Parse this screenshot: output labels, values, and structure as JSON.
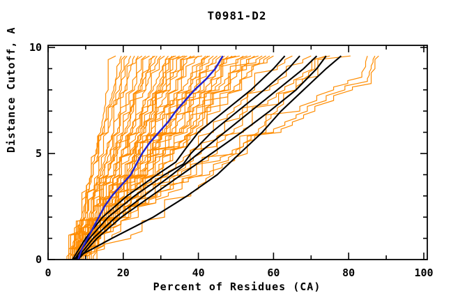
{
  "title": "T0981-D2",
  "x_axis": {
    "label": "Percent of Residues (CA)",
    "range": [
      0,
      100
    ],
    "major_ticks": [
      0,
      20,
      40,
      60,
      80,
      100
    ],
    "minor_step": 10
  },
  "y_axis": {
    "label": "Distance Cutoff, A",
    "range": [
      0,
      10
    ],
    "major_ticks": [
      0,
      5,
      10
    ],
    "minor_step": 1
  },
  "colors": {
    "background": "#ffffff",
    "frame": "#000000",
    "orange": "#ff8c00",
    "black": "#000000",
    "blue": "#2222cc",
    "text": "#000000"
  },
  "chart_data": {
    "type": "line",
    "title": "T0981-D2",
    "xlabel": "Percent of Residues (CA)",
    "ylabel": "Distance Cutoff, A",
    "xlim": [
      0,
      100
    ],
    "ylim": [
      0,
      10
    ],
    "grid": false,
    "legend": "none",
    "description": "Cumulative percent of CA residues under distance cutoff for many predicted models: orange = all models, black = best models, blue = reference model. Curves rise from ~5-13% at 0 A to their final percent at ~9.6 A.",
    "cutoffs_default": [
      0,
      2,
      4,
      6,
      8,
      9.6
    ],
    "series": [
      {
        "color": "orange",
        "p": [
          7,
          9.5,
          11.5,
          14,
          16,
          18
        ]
      },
      {
        "color": "orange",
        "p": [
          6,
          9,
          11.5,
          14.5,
          17.5,
          19.5
        ]
      },
      {
        "color": "orange",
        "p": [
          6,
          9,
          12,
          15,
          18,
          20.5
        ]
      },
      {
        "color": "orange",
        "p": [
          8,
          10.5,
          13.5,
          16,
          19,
          21
        ]
      },
      {
        "color": "orange",
        "p": [
          5.5,
          9,
          12,
          16,
          19.5,
          22
        ]
      },
      {
        "color": "orange",
        "p": [
          7.5,
          11,
          14,
          17.5,
          20.5,
          23
        ]
      },
      {
        "color": "orange",
        "p": [
          6.5,
          10,
          13.5,
          17.5,
          21,
          24
        ]
      },
      {
        "color": "orange",
        "p": [
          9,
          12.5,
          16,
          19,
          22.5,
          25
        ]
      },
      {
        "color": "orange",
        "p": [
          6,
          10,
          14.5,
          18.5,
          23,
          26
        ]
      },
      {
        "color": "orange",
        "p": [
          8,
          12,
          16,
          20,
          24,
          27
        ]
      },
      {
        "color": "orange",
        "p": [
          7,
          11.5,
          16,
          20.5,
          25,
          28
        ]
      },
      {
        "color": "orange",
        "p": [
          5.5,
          10,
          15,
          20,
          24.5,
          28.5
        ]
      },
      {
        "color": "orange",
        "p": [
          10,
          14,
          18,
          22,
          26,
          29
        ]
      },
      {
        "color": "orange",
        "p": [
          6.5,
          11.5,
          16,
          21,
          26,
          30
        ]
      },
      {
        "color": "orange",
        "p": [
          8.5,
          13,
          18,
          22.5,
          27.5,
          31
        ]
      },
      {
        "color": "orange",
        "p": [
          7,
          12,
          17.5,
          22.5,
          28,
          32
        ]
      },
      {
        "color": "orange",
        "p": [
          9.5,
          14.5,
          19.5,
          24,
          29,
          33
        ]
      },
      {
        "color": "orange",
        "p": [
          12,
          16.5,
          21,
          25.5,
          30,
          33.5
        ]
      },
      {
        "color": "orange",
        "p": [
          6,
          12,
          17.5,
          23.5,
          29.5,
          34
        ]
      },
      {
        "color": "orange",
        "p": [
          8,
          13.5,
          19,
          25,
          30.5,
          35
        ]
      },
      {
        "color": "orange",
        "p": [
          7.5,
          13.5,
          19.5,
          25.5,
          31.5,
          36
        ]
      },
      {
        "color": "orange",
        "p": [
          5,
          11.5,
          18,
          24.5,
          31.5,
          36.5
        ]
      },
      {
        "color": "orange",
        "p": [
          10.5,
          16,
          21.5,
          27,
          32.5,
          37
        ]
      },
      {
        "color": "orange",
        "p": [
          6.5,
          13,
          19.5,
          26,
          32.5,
          38
        ]
      },
      {
        "color": "orange",
        "p": [
          9,
          15,
          21.5,
          27.5,
          34,
          39
        ]
      },
      {
        "color": "orange",
        "p": [
          7,
          14,
          20.5,
          27.5,
          34.5,
          40
        ]
      },
      {
        "color": "orange",
        "p": [
          8.5,
          15,
          22,
          28.5,
          35.5,
          41
        ]
      },
      {
        "color": "orange",
        "p": [
          6,
          13.5,
          21,
          28.5,
          36,
          42
        ]
      },
      {
        "color": "orange",
        "p": [
          13,
          19,
          25.5,
          31.5,
          37.5,
          42.5
        ]
      },
      {
        "color": "orange",
        "p": [
          11,
          17.5,
          24.5,
          31,
          38,
          43
        ]
      },
      {
        "color": "orange",
        "p": [
          7.5,
          15,
          22.5,
          30.5,
          38,
          44
        ]
      },
      {
        "color": "orange",
        "p": [
          9,
          16.5,
          24,
          31.5,
          39,
          45
        ]
      },
      {
        "color": "orange",
        "p": [
          6.5,
          14.5,
          23,
          31.5,
          39.5,
          46
        ]
      },
      {
        "color": "orange",
        "p": [
          8,
          16,
          24.5,
          32.5,
          40.5,
          47
        ]
      },
      {
        "color": "orange",
        "p": [
          10,
          18,
          26,
          34,
          42,
          48
        ]
      },
      {
        "color": "orange",
        "p": [
          7,
          15.5,
          24.5,
          33,
          41.5,
          49
        ]
      },
      {
        "color": "orange",
        "p": [
          9.5,
          18,
          26.5,
          35,
          43.5,
          50
        ]
      },
      {
        "color": "orange",
        "p": [
          6,
          15.5,
          25,
          34,
          43.5,
          51
        ]
      },
      {
        "color": "orange",
        "p": [
          8.5,
          17.5,
          26.5,
          35.5,
          44.5,
          52
        ]
      },
      {
        "color": "orange",
        "p": [
          7.5,
          17,
          26.5,
          36,
          45.5,
          53
        ]
      },
      {
        "color": "orange",
        "p": [
          11.5,
          20.5,
          29,
          38,
          47,
          54
        ]
      },
      {
        "color": "orange",
        "p": [
          6.5,
          16.5,
          26.5,
          37,
          47,
          55
        ]
      },
      {
        "color": "orange",
        "p": [
          9,
          19,
          28.5,
          38.5,
          48,
          56
        ]
      },
      {
        "color": "orange",
        "p": [
          7,
          17.5,
          28,
          38,
          48.5,
          57
        ]
      },
      {
        "color": "orange",
        "p": [
          8,
          18.5,
          29,
          39.5,
          49.5,
          58
        ]
      },
      {
        "color": "orange",
        "p": [
          10,
          20,
          30.5,
          40.5,
          51,
          59
        ]
      },
      {
        "color": "orange",
        "p": [
          7.5,
          18.5,
          29.5,
          40.5,
          51.5,
          60
        ]
      },
      {
        "color": "orange",
        "p": [
          8,
          20,
          32,
          44,
          55,
          65
        ]
      },
      {
        "color": "orange",
        "p": [
          9,
          21.5,
          34.5,
          47,
          59,
          70
        ]
      },
      {
        "color": "orange",
        "p": [
          7.5,
          21.5,
          35.5,
          49.5,
          63,
          75
        ]
      },
      {
        "color": "orange",
        "p": [
          10,
          24,
          38,
          52,
          66,
          80.5
        ]
      },
      {
        "color": "orange",
        "pts": [
          [
            0,
            8.5
          ],
          [
            0.5,
            15
          ],
          [
            1,
            22
          ],
          [
            2,
            31
          ],
          [
            3,
            38
          ],
          [
            4,
            44
          ],
          [
            5,
            50
          ],
          [
            6,
            56
          ],
          [
            7,
            61
          ],
          [
            8,
            66
          ],
          [
            9,
            71
          ],
          [
            9.6,
            74
          ]
        ]
      },
      {
        "color": "orange",
        "pts": [
          [
            0,
            8
          ],
          [
            1,
            14
          ],
          [
            2,
            22
          ],
          [
            3,
            32
          ],
          [
            4,
            43
          ],
          [
            5,
            53
          ],
          [
            6,
            62
          ],
          [
            7,
            71
          ],
          [
            7.5,
            76
          ],
          [
            8,
            81
          ],
          [
            8.3,
            86
          ],
          [
            9,
            87
          ],
          [
            9.6,
            88
          ]
        ]
      },
      {
        "color": "orange",
        "pts": [
          [
            0,
            7.5
          ],
          [
            1,
            13
          ],
          [
            2,
            20.5
          ],
          [
            3,
            30
          ],
          [
            4,
            41
          ],
          [
            5,
            51
          ],
          [
            6,
            60
          ],
          [
            7,
            69
          ],
          [
            7.5,
            74
          ],
          [
            8,
            79
          ],
          [
            8.4,
            85
          ],
          [
            9,
            86
          ],
          [
            9.6,
            87
          ]
        ]
      },
      {
        "color": "orange",
        "pts": [
          [
            0,
            7
          ],
          [
            1,
            12.5
          ],
          [
            2,
            20
          ],
          [
            3,
            29
          ],
          [
            4,
            39.5
          ],
          [
            5,
            49
          ],
          [
            6,
            58
          ],
          [
            7,
            67
          ],
          [
            7.5,
            71.5
          ],
          [
            8,
            76
          ],
          [
            8.6,
            83.5
          ],
          [
            9.1,
            84.5
          ],
          [
            9.6,
            85
          ]
        ]
      },
      {
        "color": "black",
        "pts": [
          [
            0,
            6.5
          ],
          [
            1,
            10
          ],
          [
            2,
            14.5
          ],
          [
            3,
            21
          ],
          [
            4,
            29
          ],
          [
            4.6,
            34
          ],
          [
            5.2,
            36.5
          ],
          [
            6,
            40
          ],
          [
            7,
            47
          ],
          [
            8,
            54
          ],
          [
            9,
            60
          ],
          [
            9.6,
            63
          ]
        ]
      },
      {
        "color": "black",
        "pts": [
          [
            0,
            7
          ],
          [
            1,
            11
          ],
          [
            2,
            16
          ],
          [
            3,
            23
          ],
          [
            4,
            31
          ],
          [
            4.5,
            36
          ],
          [
            5,
            38
          ],
          [
            6,
            43.5
          ],
          [
            7,
            50.5
          ],
          [
            8,
            57.5
          ],
          [
            9,
            64
          ],
          [
            9.6,
            67
          ]
        ]
      },
      {
        "color": "black",
        "pts": [
          [
            0,
            7.5
          ],
          [
            1,
            12
          ],
          [
            2,
            18
          ],
          [
            3,
            25.5
          ],
          [
            4,
            33
          ],
          [
            5,
            40
          ],
          [
            6,
            47
          ],
          [
            7,
            54
          ],
          [
            8,
            61
          ],
          [
            9,
            68
          ],
          [
            9.6,
            71.5
          ]
        ]
      },
      {
        "color": "black",
        "pts": [
          [
            0,
            8
          ],
          [
            1,
            13
          ],
          [
            2,
            19.5
          ],
          [
            3,
            27.5
          ],
          [
            4,
            35.5
          ],
          [
            5,
            43.5
          ],
          [
            6,
            51.5
          ],
          [
            7,
            59
          ],
          [
            8,
            66
          ],
          [
            9,
            71.5
          ],
          [
            9.6,
            74
          ]
        ]
      },
      {
        "color": "black",
        "pts": [
          [
            0,
            6.5
          ],
          [
            1,
            17
          ],
          [
            2,
            28
          ],
          [
            3,
            37
          ],
          [
            4,
            45
          ],
          [
            5,
            51
          ],
          [
            6,
            57
          ],
          [
            7,
            62
          ],
          [
            8,
            68
          ],
          [
            9,
            74
          ],
          [
            9.6,
            78
          ]
        ]
      },
      {
        "color": "blue",
        "pts": [
          [
            0,
            8
          ],
          [
            0.5,
            9
          ],
          [
            1,
            10.5
          ],
          [
            1.5,
            12
          ],
          [
            2,
            13.5
          ],
          [
            2.5,
            15
          ],
          [
            3,
            17
          ],
          [
            3.5,
            19.5
          ],
          [
            4,
            22
          ],
          [
            4.5,
            23.5
          ],
          [
            5,
            25
          ],
          [
            5.5,
            27
          ],
          [
            6,
            29.5
          ],
          [
            6.5,
            32
          ],
          [
            7,
            34
          ],
          [
            7.5,
            36.5
          ],
          [
            8,
            39
          ],
          [
            8.5,
            42
          ],
          [
            9,
            44.5
          ],
          [
            9.6,
            46.5
          ]
        ]
      }
    ]
  }
}
